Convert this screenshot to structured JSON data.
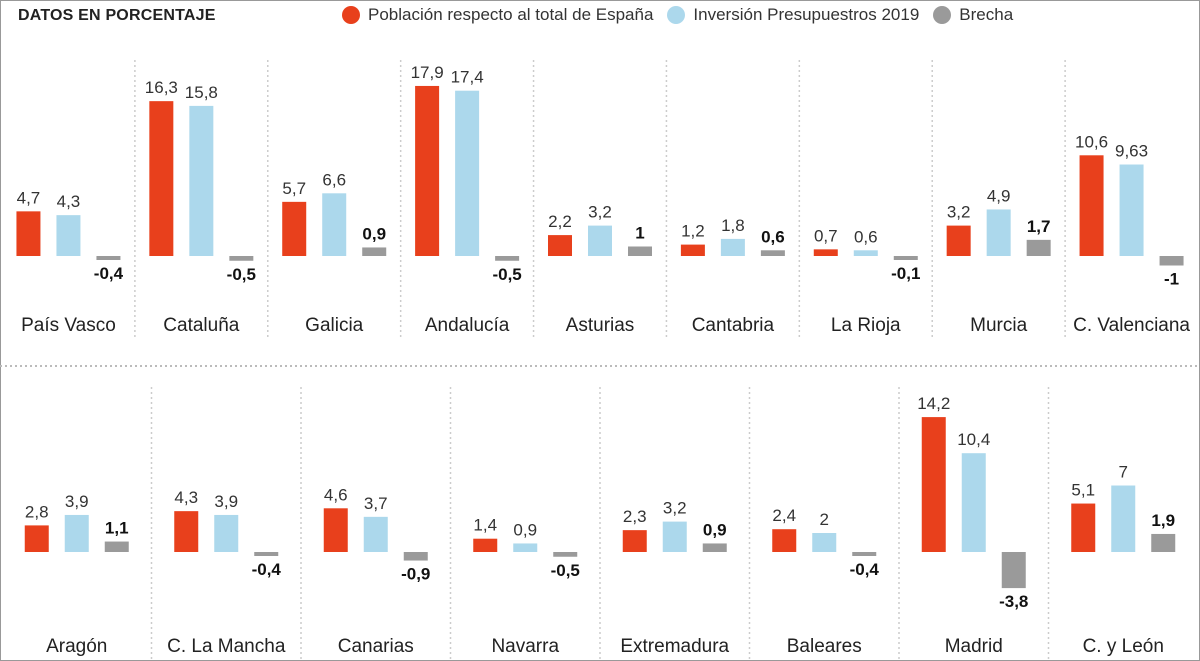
{
  "heading": "DATOS EN PORCENTAJE",
  "legend": [
    {
      "label": "Población respecto al total de España",
      "color": "#e8401c"
    },
    {
      "label": "Inversión Presupuestros 2019",
      "color": "#acd8ec"
    },
    {
      "label": "Brecha",
      "color": "#9a9a9a"
    }
  ],
  "chart_data": {
    "type": "bar",
    "grid": false,
    "legend_position": "top",
    "series_names": [
      "Población respecto al total de España",
      "Inversión Presupuestros 2019",
      "Brecha"
    ],
    "rows": [
      {
        "regions": [
          {
            "name": "País Vasco",
            "values": [
              4.7,
              4.3,
              -0.4
            ],
            "labels": [
              "4,7",
              "4,3",
              "-0,4"
            ]
          },
          {
            "name": "Cataluña",
            "values": [
              16.3,
              15.8,
              -0.5
            ],
            "labels": [
              "16,3",
              "15,8",
              "-0,5"
            ]
          },
          {
            "name": "Galicia",
            "values": [
              5.7,
              6.6,
              0.9
            ],
            "labels": [
              "5,7",
              "6,6",
              "0,9"
            ]
          },
          {
            "name": "Andalucía",
            "values": [
              17.9,
              17.4,
              -0.5
            ],
            "labels": [
              "17,9",
              "17,4",
              "-0,5"
            ]
          },
          {
            "name": "Asturias",
            "values": [
              2.2,
              3.2,
              1
            ],
            "labels": [
              "2,2",
              "3,2",
              "1"
            ]
          },
          {
            "name": "Cantabria",
            "values": [
              1.2,
              1.8,
              0.6
            ],
            "labels": [
              "1,2",
              "1,8",
              "0,6"
            ]
          },
          {
            "name": "La Rioja",
            "values": [
              0.7,
              0.6,
              -0.1
            ],
            "labels": [
              "0,7",
              "0,6",
              "-0,1"
            ]
          },
          {
            "name": "Murcia",
            "values": [
              3.2,
              4.9,
              1.7
            ],
            "labels": [
              "3,2",
              "4,9",
              "1,7"
            ]
          },
          {
            "name": "C. Valenciana",
            "values": [
              10.6,
              9.63,
              -1
            ],
            "labels": [
              "10,6",
              "9,63",
              "-1"
            ]
          }
        ]
      },
      {
        "regions": [
          {
            "name": "Aragón",
            "values": [
              2.8,
              3.9,
              1.1
            ],
            "labels": [
              "2,8",
              "3,9",
              "1,1"
            ]
          },
          {
            "name": "C. La Mancha",
            "values": [
              4.3,
              3.9,
              -0.4
            ],
            "labels": [
              "4,3",
              "3,9",
              "-0,4"
            ]
          },
          {
            "name": "Canarias",
            "values": [
              4.6,
              3.7,
              -0.9
            ],
            "labels": [
              "4,6",
              "3,7",
              "-0,9"
            ]
          },
          {
            "name": "Navarra",
            "values": [
              1.4,
              0.9,
              -0.5
            ],
            "labels": [
              "1,4",
              "0,9",
              "-0,5"
            ]
          },
          {
            "name": "Extremadura",
            "values": [
              2.3,
              3.2,
              0.9
            ],
            "labels": [
              "2,3",
              "3,2",
              "0,9"
            ]
          },
          {
            "name": "Baleares",
            "values": [
              2.4,
              2,
              -0.4
            ],
            "labels": [
              "2,4",
              "2",
              "-0,4"
            ]
          },
          {
            "name": "Madrid",
            "values": [
              14.2,
              10.4,
              -3.8
            ],
            "labels": [
              "14,2",
              "10,4",
              "-3,8"
            ]
          },
          {
            "name": "C. y León",
            "values": [
              5.1,
              7,
              1.9
            ],
            "labels": [
              "5,1",
              "7",
              "1,9"
            ]
          }
        ]
      }
    ]
  }
}
